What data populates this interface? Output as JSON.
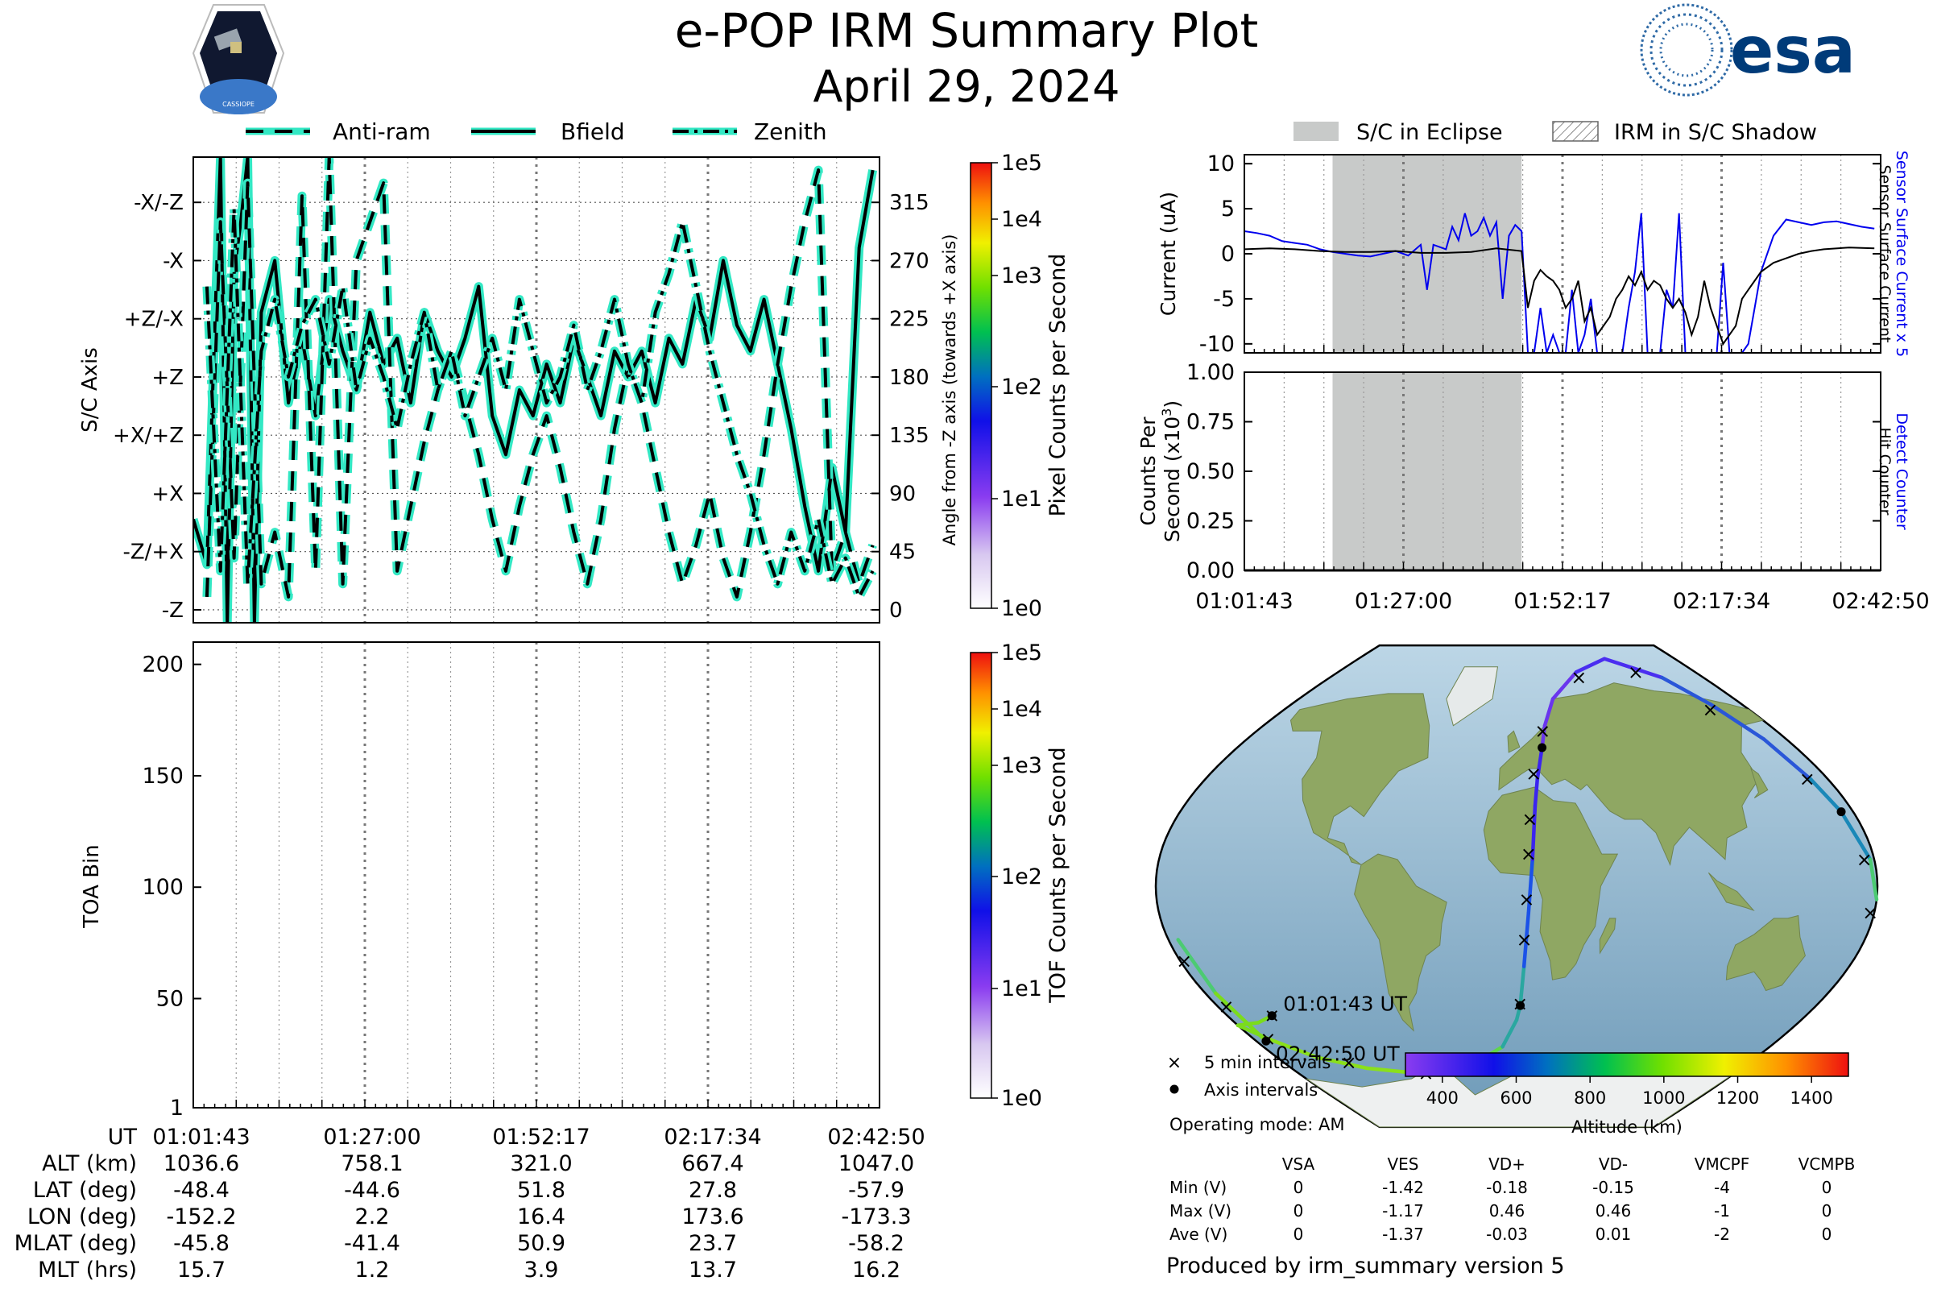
{
  "header": {
    "title": "e-POP IRM Summary Plot",
    "date": "April 29, 2024",
    "logo_text": "CASSIOPE",
    "brand": "esa"
  },
  "colors": {
    "trace_halo": "#33e8c4",
    "eclipse": "#c8cac9",
    "sensor": "#0000ee",
    "detect": "#0000ee",
    "panel": "#000000"
  },
  "legend_top": [
    {
      "label": "Anti-ram",
      "style": "dashed"
    },
    {
      "label": "Bfield",
      "style": "solid"
    },
    {
      "label": "Zenith",
      "style": "dashdot"
    }
  ],
  "legend_right": [
    {
      "label": "S/C in Eclipse"
    },
    {
      "label": "IRM in S/C Shadow"
    }
  ],
  "time_labels": [
    "01:01:43",
    "01:27:00",
    "01:52:17",
    "02:17:34",
    "02:42:50"
  ],
  "chart_data": [
    {
      "id": "axis-angle",
      "type": "line",
      "title": "",
      "ylabel": "S/C Axis",
      "ylabel_right": "Angle from -Z axis (towards +X axis)",
      "ytick_labels": [
        "-X/-Z",
        "-X",
        "+Z/-X",
        "+Z",
        "+X/+Z",
        "+X",
        "-Z/+X",
        "-Z"
      ],
      "ytick_values": [
        315,
        270,
        225,
        180,
        135,
        90,
        45,
        0
      ],
      "right_ticks": [
        "315",
        "270",
        "225",
        "180",
        "135",
        "90",
        "45",
        "0"
      ],
      "ylim": [
        -10,
        350
      ],
      "xlim": [
        0,
        101
      ],
      "series": [
        {
          "name": "Bfield",
          "style": "solid",
          "x": [
            0,
            2,
            4,
            5,
            6,
            7,
            8,
            9,
            10,
            12,
            14,
            16,
            18,
            20,
            22,
            24,
            26,
            28,
            30,
            32,
            34,
            36,
            38,
            40,
            42,
            44,
            46,
            48,
            50,
            52,
            54,
            56,
            58,
            60,
            62,
            64,
            66,
            68,
            70,
            72,
            74,
            76,
            78,
            80,
            82,
            84,
            86,
            88,
            90,
            92,
            94,
            96,
            98,
            100
          ],
          "y": [
            70,
            35,
            350,
            -10,
            260,
            300,
            350,
            -10,
            230,
            270,
            160,
            210,
            150,
            240,
            200,
            170,
            230,
            190,
            210,
            160,
            230,
            200,
            180,
            210,
            250,
            150,
            120,
            170,
            150,
            190,
            160,
            210,
            180,
            150,
            200,
            180,
            200,
            160,
            210,
            190,
            240,
            210,
            270,
            220,
            200,
            240,
            190,
            140,
            80,
            30,
            110,
            60,
            280,
            340
          ]
        },
        {
          "name": "Anti-ram",
          "style": "dashed",
          "x": [
            2,
            4,
            6,
            8,
            10,
            12,
            14,
            16,
            18,
            20,
            22,
            24,
            26,
            28,
            30,
            32,
            34,
            36,
            38,
            40,
            42,
            44,
            46,
            48,
            50,
            52,
            54,
            56,
            58,
            60,
            62,
            64,
            66,
            68,
            70,
            72,
            74,
            76,
            78,
            80,
            82,
            84,
            86,
            88,
            90,
            92,
            94,
            96,
            98,
            100
          ],
          "y": [
            10,
            300,
            40,
            330,
            20,
            60,
            10,
            320,
            30,
            350,
            20,
            270,
            300,
            330,
            30,
            80,
            130,
            170,
            200,
            160,
            120,
            70,
            30,
            80,
            120,
            150,
            110,
            60,
            20,
            70,
            140,
            190,
            160,
            110,
            60,
            20,
            50,
            90,
            40,
            10,
            60,
            120,
            190,
            250,
            300,
            340,
            30,
            60,
            20,
            50
          ]
        },
        {
          "name": "Zenith",
          "style": "dashdot",
          "x": [
            2,
            4,
            6,
            8,
            10,
            12,
            14,
            16,
            18,
            20,
            22,
            24,
            26,
            28,
            30,
            32,
            34,
            36,
            38,
            40,
            42,
            44,
            46,
            48,
            50,
            52,
            54,
            56,
            58,
            60,
            62,
            64,
            66,
            68,
            70,
            72,
            74,
            76,
            78,
            80,
            82,
            84,
            86,
            88,
            90,
            92,
            94,
            96,
            98,
            100
          ],
          "y": [
            250,
            30,
            310,
            20,
            200,
            240,
            180,
            220,
            240,
            190,
            250,
            170,
            210,
            180,
            140,
            190,
            230,
            170,
            200,
            150,
            180,
            210,
            170,
            240,
            200,
            160,
            180,
            220,
            170,
            200,
            240,
            190,
            160,
            230,
            260,
            300,
            250,
            200,
            160,
            120,
            90,
            50,
            20,
            60,
            30,
            70,
            20,
            40,
            10,
            30
          ]
        }
      ]
    },
    {
      "id": "toa",
      "type": "heatmap",
      "ylabel": "TOA Bin",
      "ytick_labels": [
        "200",
        "150",
        "100",
        "50",
        "1"
      ],
      "ytick_values": [
        200,
        150,
        100,
        50,
        1
      ],
      "ylim": [
        1,
        210
      ],
      "values": []
    },
    {
      "id": "pixel-colorbar",
      "type": "colorbar",
      "label": "Pixel Counts per Second",
      "tick_labels": [
        "1e5",
        "1e4",
        "1e3",
        "1e2",
        "1e1",
        "1e0"
      ],
      "scale": "log",
      "range": [
        1,
        100000
      ]
    },
    {
      "id": "tof-colorbar",
      "type": "colorbar",
      "label": "TOF Counts per Second",
      "tick_labels": [
        "1e5",
        "1e4",
        "1e3",
        "1e2",
        "1e1",
        "1e0"
      ],
      "scale": "log",
      "range": [
        1,
        100000
      ]
    },
    {
      "id": "current",
      "type": "line",
      "ylabel": "Current (uA)",
      "right_label_blue": "Sensor Surface Current x 5",
      "right_label_black": "Sensor Surface Current",
      "ytick_labels": [
        "10",
        "5",
        "0",
        "-5",
        "-10"
      ],
      "ytick_values": [
        10,
        5,
        0,
        -5,
        -10
      ],
      "ylim": [
        -11,
        11
      ],
      "xlim": [
        0,
        101
      ],
      "eclipse": [
        14,
        44
      ],
      "series": [
        {
          "name": "Sensor Surface Current x 5",
          "color": "blue",
          "x": [
            0,
            2,
            4,
            6,
            8,
            10,
            12,
            14,
            16,
            18,
            20,
            22,
            24,
            26,
            28,
            29,
            30,
            32,
            33,
            34,
            35,
            36,
            37,
            38,
            39,
            40,
            41,
            42,
            43,
            44,
            45,
            46,
            47,
            48,
            49,
            50,
            51,
            52,
            53,
            54,
            55,
            56,
            57,
            58,
            59,
            60,
            61,
            62,
            63,
            64,
            65,
            66,
            67,
            68,
            69,
            70,
            71,
            72,
            73,
            74,
            75,
            76,
            77,
            78,
            79,
            80,
            81,
            82,
            84,
            86,
            88,
            90,
            92,
            94,
            96,
            98,
            100
          ],
          "y": [
            2.5,
            2.3,
            2.0,
            1.4,
            1.2,
            1.0,
            0.5,
            0.2,
            0.0,
            -0.2,
            -0.3,
            0.0,
            0.3,
            -0.2,
            1.0,
            -4.0,
            1.0,
            0.5,
            3.0,
            1.5,
            4.5,
            2.0,
            2.5,
            4.0,
            2.0,
            3.5,
            -5.0,
            2.0,
            3.2,
            2.5,
            -11,
            -11,
            -6,
            -11,
            -9,
            -11,
            -11,
            -4,
            -11,
            -9,
            -5,
            -11,
            -11,
            -11,
            -11,
            -11,
            -6,
            -2,
            4.5,
            -11,
            -11,
            -11,
            -4,
            -6,
            4.5,
            -11,
            -11,
            -11,
            -11,
            -11,
            -11,
            -1,
            -11,
            -11,
            -11,
            -10,
            -6,
            -2,
            2,
            3.8,
            3.5,
            3.2,
            3.5,
            3.6,
            3.3,
            3.0,
            2.8
          ]
        },
        {
          "name": "Sensor Surface Current",
          "color": "black",
          "x": [
            0,
            4,
            8,
            12,
            16,
            20,
            24,
            28,
            32,
            36,
            40,
            44,
            45,
            46,
            47,
            48,
            49,
            50,
            51,
            52,
            53,
            54,
            55,
            56,
            57,
            58,
            59,
            60,
            61,
            62,
            63,
            64,
            65,
            66,
            67,
            68,
            69,
            70,
            71,
            72,
            73,
            74,
            75,
            76,
            77,
            78,
            79,
            80,
            81,
            82,
            84,
            86,
            88,
            90,
            92,
            96,
            100
          ],
          "y": [
            0.5,
            0.6,
            0.5,
            0.3,
            0.2,
            0.2,
            0.3,
            0.1,
            0.1,
            0.2,
            0.6,
            0.3,
            -6.0,
            -3.0,
            -1.8,
            -2.5,
            -3.0,
            -4.0,
            -6.0,
            -5.0,
            -3.0,
            -7.5,
            -6.0,
            -9.0,
            -8.0,
            -7.0,
            -5.0,
            -4.0,
            -2.5,
            -3.5,
            -2.0,
            -4.0,
            -3.0,
            -3.5,
            -5.0,
            -6.0,
            -5.0,
            -6.5,
            -9.0,
            -7.0,
            -3.0,
            -6.0,
            -8.0,
            -10.0,
            -9.0,
            -8.0,
            -5.0,
            -4.0,
            -3.0,
            -2.0,
            -1.0,
            -0.5,
            0.0,
            0.3,
            0.5,
            0.7,
            0.6
          ]
        }
      ]
    },
    {
      "id": "counts",
      "type": "line",
      "ylabel_line1": "Counts Per",
      "ylabel_line2": "Second (x10",
      "ylabel_exp": "3",
      "ylabel_close": ")",
      "right_label_blue": "Detect Counter",
      "right_label_black": "Hit Counter",
      "ytick_labels": [
        "1.00",
        "0.75",
        "0.50",
        "0.25",
        "0.00"
      ],
      "ytick_values": [
        1.0,
        0.75,
        0.5,
        0.25,
        0.0
      ],
      "ylim": [
        0,
        1
      ],
      "xlim": [
        0,
        101
      ],
      "eclipse": [
        14,
        44
      ],
      "series": [
        {
          "name": "Detect Counter",
          "x": [
            0,
            101
          ],
          "y": [
            0,
            0
          ]
        },
        {
          "name": "Hit Counter",
          "x": [
            0,
            101
          ],
          "y": [
            0,
            0
          ]
        }
      ]
    },
    {
      "id": "altitude-colorbar",
      "type": "colorbar",
      "label": "Altitude (km)",
      "tick_labels": [
        "400",
        "600",
        "800",
        "1000",
        "1200",
        "1400"
      ],
      "range": [
        300,
        1500
      ]
    },
    {
      "id": "ground-track",
      "type": "scatter",
      "projection": "Robinson",
      "start_label": "01:01:43 UT",
      "end_label": "02:42:50 UT",
      "track": [
        [
          -152.2,
          -48.4
        ],
        [
          -165,
          -51
        ],
        [
          -180,
          -52
        ],
        [
          -170,
          -57
        ],
        [
          -150,
          -64
        ],
        [
          -120,
          -68
        ],
        [
          -80,
          -70
        ],
        [
          -40,
          -68
        ],
        [
          -10,
          -60
        ],
        [
          0,
          -50
        ],
        [
          2.2,
          -44.6
        ],
        [
          4,
          -30
        ],
        [
          6,
          -10
        ],
        [
          8,
          10
        ],
        [
          10,
          30
        ],
        [
          12,
          40
        ],
        [
          16.4,
          51.8
        ],
        [
          20,
          60
        ],
        [
          30,
          70
        ],
        [
          60,
          80
        ],
        [
          100,
          85
        ],
        [
          140,
          78
        ],
        [
          155,
          68
        ],
        [
          165,
          55
        ],
        [
          170,
          40
        ],
        [
          173.6,
          27.8
        ],
        [
          178,
          10
        ],
        [
          180,
          -5
        ],
        [
          -175,
          -20
        ],
        [
          -174,
          -40
        ],
        [
          -173.3,
          -57.9
        ]
      ],
      "five_min_marks": [
        [
          -152.2,
          -48.4
        ],
        [
          -175,
          -45
        ],
        [
          -170,
          -57
        ],
        [
          -130,
          -66
        ],
        [
          -75,
          -70
        ],
        [
          -35,
          -66
        ],
        [
          2,
          -44
        ],
        [
          4,
          -20
        ],
        [
          5,
          -5
        ],
        [
          6,
          12
        ],
        [
          7,
          25
        ],
        [
          10,
          42
        ],
        [
          18,
          58
        ],
        [
          60,
          78
        ],
        [
          120,
          80
        ],
        [
          150,
          66
        ],
        [
          168,
          40
        ],
        [
          175,
          10
        ],
        [
          178,
          -10
        ],
        [
          -178,
          -28
        ]
      ],
      "axis_marks": [
        [
          -152.2,
          -48.4
        ],
        [
          2.2,
          -44.6
        ],
        [
          16.4,
          51.8
        ],
        [
          173.6,
          27.8
        ],
        [
          -173.3,
          -57.9
        ]
      ]
    }
  ],
  "map_legend": {
    "five_min": "5 min intervals",
    "axis": "Axis intervals",
    "mode": "Operating mode: AM"
  },
  "stats_table": {
    "headers": [
      "VSA",
      "VES",
      "VD+",
      "VD-",
      "VMCPF",
      "VCMPB"
    ],
    "rows": [
      {
        "label": "Min (V)",
        "values": [
          "0",
          "-1.42",
          "-0.18",
          "-0.15",
          "-4",
          "0"
        ]
      },
      {
        "label": "Max (V)",
        "values": [
          "0",
          "-1.17",
          "0.46",
          "0.46",
          "-1",
          "0"
        ]
      },
      {
        "label": "Ave (V)",
        "values": [
          "0",
          "-1.37",
          "-0.03",
          "0.01",
          "-2",
          "0"
        ]
      }
    ]
  },
  "ephemeris": {
    "rows": [
      {
        "label": "UT",
        "values": [
          "01:01:43",
          "01:27:00",
          "01:52:17",
          "02:17:34",
          "02:42:50"
        ]
      },
      {
        "label": "ALT (km)",
        "values": [
          "1036.6",
          "758.1",
          "321.0",
          "667.4",
          "1047.0"
        ]
      },
      {
        "label": "LAT (deg)",
        "values": [
          "-48.4",
          "-44.6",
          "51.8",
          "27.8",
          "-57.9"
        ]
      },
      {
        "label": "LON (deg)",
        "values": [
          "-152.2",
          "2.2",
          "16.4",
          "173.6",
          "-173.3"
        ]
      },
      {
        "label": "MLAT (deg)",
        "values": [
          "-45.8",
          "-41.4",
          "50.9",
          "23.7",
          "-58.2"
        ]
      },
      {
        "label": "MLT (hrs)",
        "values": [
          "15.7",
          "1.2",
          "3.9",
          "13.7",
          "16.2"
        ]
      }
    ]
  },
  "footer": "Produced by irm_summary version 5"
}
